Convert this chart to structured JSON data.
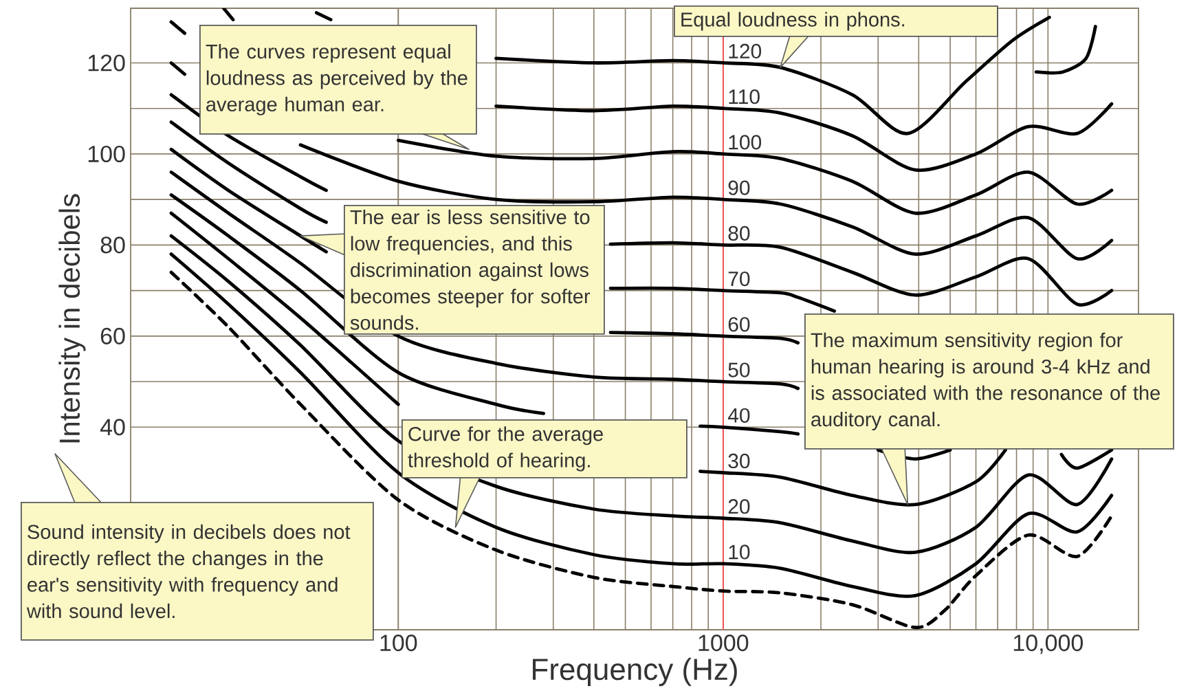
{
  "chart_data": {
    "type": "line",
    "xlabel": "Frequency (Hz)",
    "ylabel": "Intensity in decibels",
    "log": "x",
    "grid": true,
    "xlim": [
      15,
      19000
    ],
    "ylim": [
      -4.5,
      132
    ],
    "xticks": [
      100,
      1000,
      {
        "value": 10000,
        "label": "10,000"
      }
    ],
    "yticks": [
      40,
      60,
      80,
      100,
      120
    ],
    "ref_lines": [
      {
        "axis": "x",
        "value": 1000,
        "color": "#ff5050"
      }
    ],
    "series": [
      {
        "color": "#000000",
        "line_style": "dashed",
        "x": [
          20,
          30,
          50,
          100,
          200,
          400,
          700,
          1000,
          1500,
          2500,
          3900,
          4800,
          6000,
          8700,
          12300,
          15700
        ],
        "values": [
          74,
          62,
          45,
          24,
          13,
          7,
          5,
          4,
          3.6,
          1,
          -4,
          -0.3,
          7.4,
          16.3,
          11.6,
          20.5
        ]
      },
      {
        "name": "10",
        "color": "#000000",
        "x": [
          20,
          30,
          50,
          100,
          200,
          400,
          700,
          1000,
          1500,
          2500,
          3900,
          6000,
          8700,
          12300,
          15700
        ],
        "values": [
          78,
          67,
          52,
          30,
          18,
          12,
          10,
          10,
          9,
          5,
          3,
          10,
          21,
          17,
          25
        ]
      },
      {
        "name": "20",
        "color": "#000000",
        "x": [
          20,
          30,
          50,
          100,
          200,
          400,
          700,
          1000,
          1500,
          2500,
          3900,
          6000,
          8700,
          12300,
          15700
        ],
        "values": [
          82,
          72,
          58,
          37,
          27,
          22,
          20.5,
          20,
          19,
          15,
          12.5,
          18,
          29.5,
          23,
          33
        ]
      },
      {
        "name": "30",
        "color": "#000000",
        "x": [
          20,
          30,
          50,
          100,
          200,
          850,
          1000,
          1500,
          2500,
          3900,
          6000,
          7400,
          8700,
          11000,
          12300,
          15700
        ],
        "values": [
          87,
          77,
          64,
          45,
          null,
          30.3,
          30,
          29,
          25,
          23,
          28,
          35,
          null,
          34,
          31,
          35
        ]
      },
      {
        "name": "40",
        "color": "#000000",
        "x": [
          20,
          30,
          50,
          100,
          200,
          280,
          400,
          850,
          1000,
          1500,
          1700,
          2500,
          3000,
          3900,
          5000
        ],
        "values": [
          91,
          82,
          70,
          52,
          45,
          43,
          null,
          40.2,
          40,
          39,
          38.5,
          null,
          35,
          33,
          35
        ]
      },
      {
        "name": "50",
        "color": "#000000",
        "x": [
          20,
          30,
          50,
          100,
          200,
          400,
          700,
          1000,
          1500,
          1700
        ],
        "values": [
          96,
          87,
          76,
          60,
          54,
          51,
          50.5,
          50,
          49.5,
          48.5
        ]
      },
      {
        "name": "60",
        "color": "#000000",
        "x": [
          20,
          30,
          50,
          60,
          100,
          450,
          700,
          1000,
          1500,
          1700
        ],
        "values": [
          101,
          92,
          82,
          78.5,
          null,
          60.8,
          60.5,
          60,
          59.5,
          58.5
        ]
      },
      {
        "name": "70",
        "color": "#000000",
        "x": [
          20,
          30,
          50,
          60,
          100,
          450,
          700,
          1000,
          1500,
          1700,
          2200
        ],
        "values": [
          107,
          98,
          88,
          85,
          null,
          70.5,
          70.5,
          70,
          69.5,
          68.5,
          65.5
        ]
      },
      {
        "name": "80",
        "color": "#000000",
        "x": [
          20,
          30,
          50,
          60,
          100,
          450,
          700,
          1000,
          1500,
          2500,
          3900,
          6000,
          8700,
          12300,
          15700
        ],
        "values": [
          113,
          104,
          95,
          92,
          null,
          80.2,
          80.5,
          80,
          79.5,
          74,
          69,
          73,
          77,
          67,
          70
        ]
      },
      {
        "name": "90",
        "color": "#000000",
        "x": [
          20,
          22,
          30,
          50,
          100,
          200,
          400,
          700,
          1000,
          1500,
          2500,
          3900,
          6000,
          8700,
          12300,
          15700
        ],
        "values": [
          120,
          117.5,
          null,
          102,
          94,
          90,
          89.5,
          90.5,
          90,
          89,
          84,
          78,
          82,
          86,
          77,
          81
        ]
      },
      {
        "name": "100",
        "color": "#000000",
        "x": [
          20,
          22,
          30,
          50,
          100,
          200,
          400,
          700,
          1000,
          1500,
          2500,
          3900,
          6000,
          8700,
          12300,
          15700
        ],
        "values": [
          129,
          126.5,
          null,
          null,
          103,
          99.5,
          99,
          100.5,
          100,
          99,
          94,
          87,
          91,
          96,
          89,
          92
        ]
      },
      {
        "name": "110",
        "color": "#000000",
        "x": [
          29,
          31,
          50,
          100,
          200,
          400,
          700,
          1000,
          1500,
          2500,
          3900,
          6000,
          8700,
          12300,
          15700
        ],
        "values": [
          132,
          129.5,
          null,
          null,
          110.5,
          109.5,
          110.5,
          110,
          109,
          104,
          96.5,
          100,
          106,
          104.5,
          111
        ]
      },
      {
        "name": "120",
        "color": "#000000",
        "x": [
          56,
          62,
          100,
          200,
          400,
          700,
          1000,
          1500,
          2500,
          3700,
          5600,
          7800,
          10100
        ],
        "values": [
          131,
          129.5,
          null,
          121,
          120,
          120.5,
          120,
          119,
          113,
          104.5,
          116,
          125,
          130
        ]
      },
      {
        "color": "#000000",
        "x": [
          9200,
          11100,
          13100,
          14000
        ],
        "values": [
          118,
          118,
          121,
          128
        ]
      }
    ],
    "annotations": [
      {
        "text": "The curves represent equal loudness as perceived by the average human ear.",
        "x": 165,
        "y": 101
      },
      {
        "text": "Equal loudness in phons.",
        "x": 1500,
        "y": 119
      },
      {
        "text": "The ear is less sensitive to low frequencies, and this discrimination against lows becomes steeper for softer sounds.",
        "x": 50,
        "y": 82
      },
      {
        "text": "The maximum sensitivity region for human hearing is around 3-4 kHz and is associated with the resonance of the auditory canal.",
        "x": 3700,
        "y": 23
      },
      {
        "text": "Curve for the average threshold of hearing.",
        "x": 150,
        "y": 18
      },
      "Sound intensity in decibels does not directly reflect the changes in the ear's sensitivity with frequency and with sound level."
    ]
  }
}
